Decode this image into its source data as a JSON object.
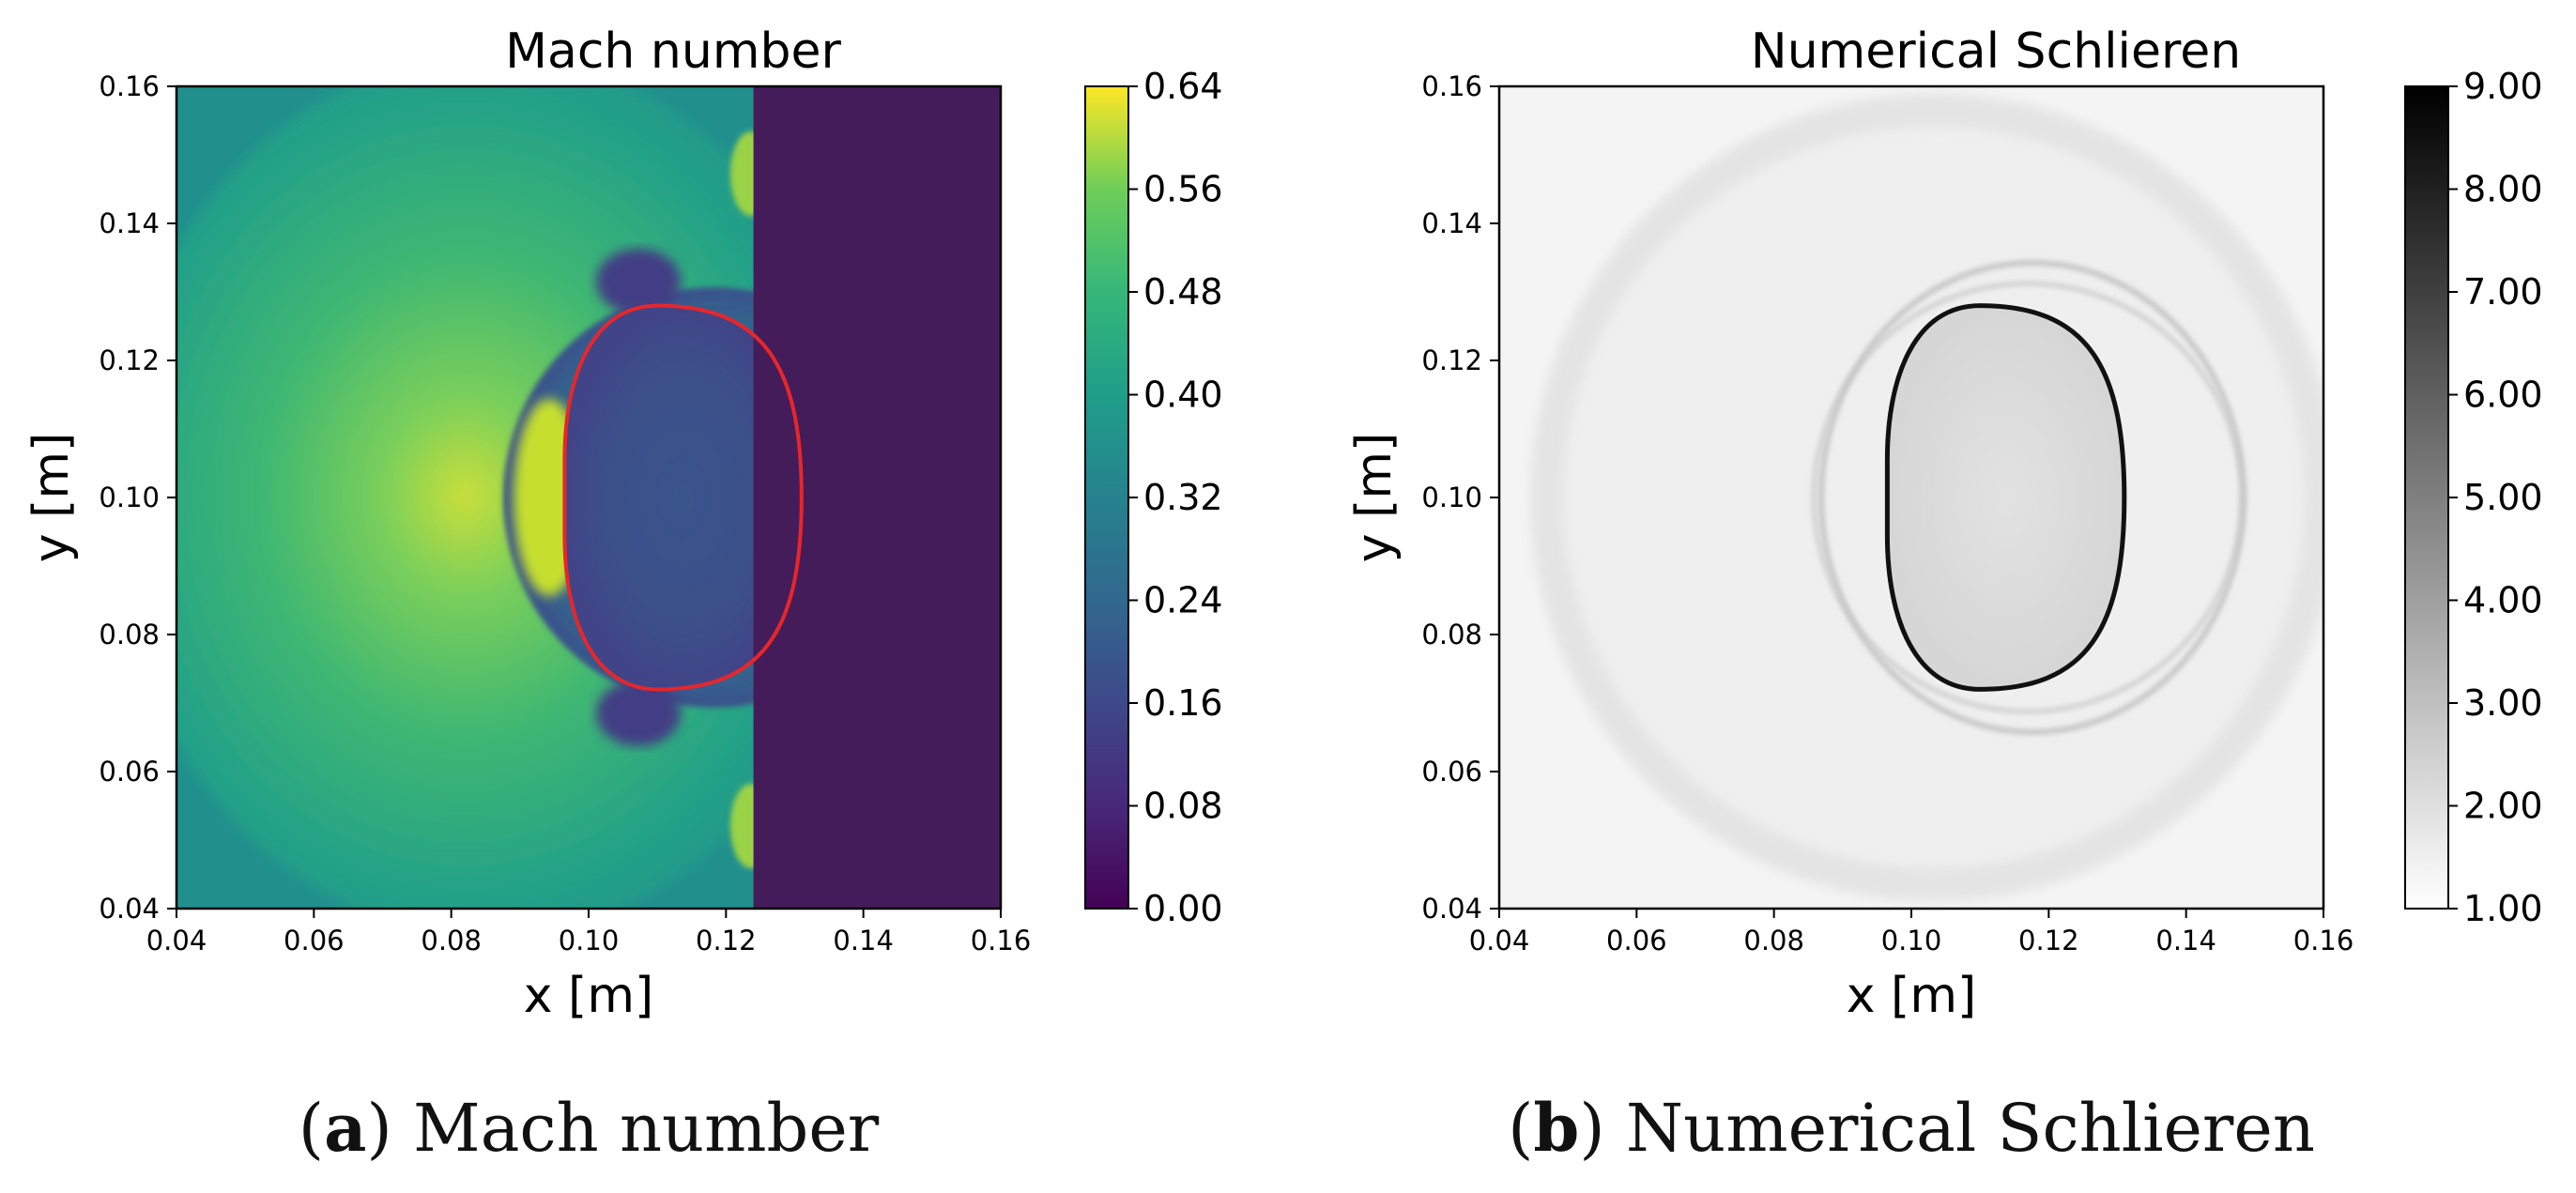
{
  "chart_data": [
    {
      "type": "heatmap",
      "title": "Mach number",
      "xlabel": "x [m]",
      "ylabel": "y [m]",
      "xlim": [
        0.04,
        0.16
      ],
      "ylim": [
        0.04,
        0.16
      ],
      "x_ticks": [
        "0.04",
        "0.06",
        "0.08",
        "0.10",
        "0.12",
        "0.14",
        "0.16"
      ],
      "y_ticks": [
        "0.04",
        "0.06",
        "0.08",
        "0.10",
        "0.12",
        "0.14",
        "0.16"
      ],
      "colormap": "viridis",
      "clim": [
        0.0,
        0.64
      ],
      "colorbar_ticks": [
        "0.00",
        "0.08",
        "0.16",
        "0.24",
        "0.32",
        "0.40",
        "0.48",
        "0.56",
        "0.64"
      ],
      "interface_color": "#e8262a",
      "interface_contour": {
        "center": [
          0.11,
          0.1
        ],
        "x_left": 0.0965,
        "x_right": 0.131,
        "y_top": 0.128,
        "y_bottom": 0.072
      },
      "shock_front_x": 0.124,
      "caption_letter": "a",
      "caption_text": "Mach number"
    },
    {
      "type": "heatmap",
      "title": "Numerical Schlieren",
      "xlabel": "x [m]",
      "ylabel": "y [m]",
      "xlim": [
        0.04,
        0.16
      ],
      "ylim": [
        0.04,
        0.16
      ],
      "x_ticks": [
        "0.04",
        "0.06",
        "0.08",
        "0.10",
        "0.12",
        "0.14",
        "0.16"
      ],
      "y_ticks": [
        "0.04",
        "0.06",
        "0.08",
        "0.10",
        "0.12",
        "0.14",
        "0.16"
      ],
      "colormap": "gray_r",
      "clim": [
        1.0,
        9.0
      ],
      "colorbar_ticks": [
        "1.00",
        "2.00",
        "3.00",
        "4.00",
        "5.00",
        "6.00",
        "7.00",
        "8.00",
        "9.00"
      ],
      "interface_color": "#111111",
      "interface_contour": {
        "center": [
          0.11,
          0.1
        ],
        "x_left": 0.0965,
        "x_right": 0.131,
        "y_top": 0.128,
        "y_bottom": 0.072
      },
      "shock_front_x": 0.124,
      "caption_letter": "b",
      "caption_text": "Numerical Schlieren"
    }
  ]
}
